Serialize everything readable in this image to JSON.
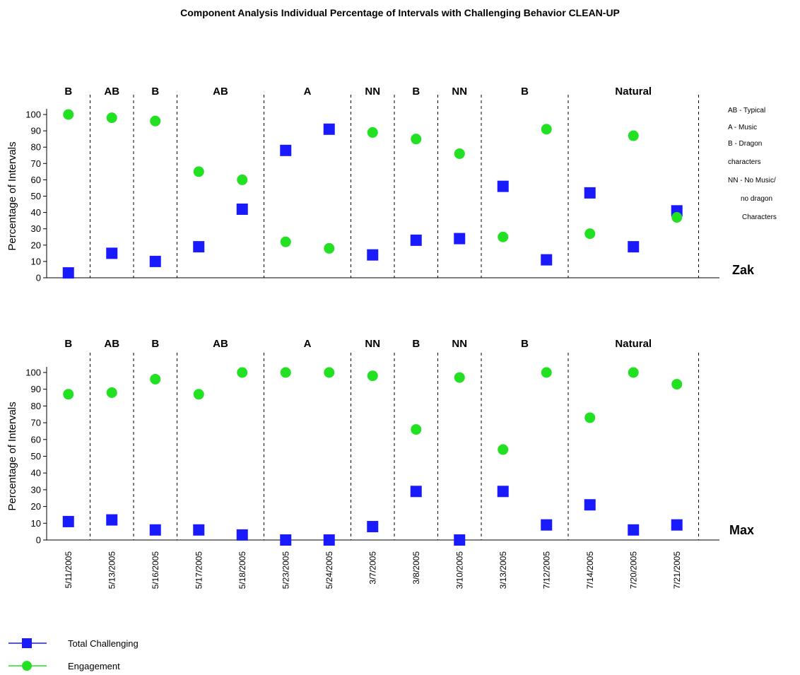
{
  "title": "Component Analysis Individual Percentage of Intervals with Challenging Behavior CLEAN-UP",
  "colors": {
    "challenging": "#1a1aff",
    "engagement": "#22e022",
    "challenging_line": "#1a1aff",
    "engagement_line": "#22e022"
  },
  "phase_key": [
    "AB -  Typical",
    "A   -  Music",
    "B   -  Dragon",
    "characters",
    "NN -  No Music/",
    "no dragon",
    "Characters"
  ],
  "legend": [
    {
      "label": "Total Challenging",
      "marker": "square"
    },
    {
      "label": "Engagement",
      "marker": "circle"
    }
  ],
  "chart_data": [
    {
      "type": "scatter",
      "subject": "Zak",
      "ylabel": "Percentage of Intervals",
      "ylim": [
        0,
        100
      ],
      "yticks": [
        0,
        10,
        20,
        30,
        40,
        50,
        60,
        70,
        80,
        90,
        100
      ],
      "grid": false,
      "phases": [
        {
          "label": "B",
          "start": 0,
          "end": 1
        },
        {
          "label": "AB",
          "start": 1,
          "end": 2
        },
        {
          "label": "B",
          "start": 2,
          "end": 3
        },
        {
          "label": "AB",
          "start": 3,
          "end": 5
        },
        {
          "label": "A",
          "start": 5,
          "end": 7
        },
        {
          "label": "NN",
          "start": 7,
          "end": 8
        },
        {
          "label": "B",
          "start": 8,
          "end": 9
        },
        {
          "label": "NN",
          "start": 9,
          "end": 10
        },
        {
          "label": "B",
          "start": 10,
          "end": 12
        },
        {
          "label": "Natural",
          "start": 12,
          "end": 15
        }
      ],
      "series": [
        {
          "name": "Total Challenging",
          "marker": "square",
          "values": [
            3,
            15,
            10,
            19,
            42,
            78,
            91,
            14,
            23,
            24,
            56,
            11,
            52,
            19,
            41
          ]
        },
        {
          "name": "Engagement",
          "marker": "circle",
          "values": [
            100,
            98,
            96,
            65,
            60,
            22,
            18,
            89,
            85,
            76,
            25,
            91,
            27,
            87,
            37
          ]
        }
      ]
    },
    {
      "type": "scatter",
      "subject": "Max",
      "ylabel": "Percentage of Intervals",
      "ylim": [
        0,
        100
      ],
      "yticks": [
        0,
        10,
        20,
        30,
        40,
        50,
        60,
        70,
        80,
        90,
        100
      ],
      "grid": false,
      "categories": [
        "5/11/2005",
        "5/13/2005",
        "5/16/2005",
        "5/17/2005",
        "5/18/2005",
        "5/23/2005",
        "5/24/2005",
        "3/7/2005",
        "3/8/2005",
        "3/10/2005",
        "3/13/2005",
        "7/12/2005",
        "7/14/2005",
        "7/20/2005",
        "7/21/2005"
      ],
      "phases": [
        {
          "label": "B",
          "start": 0,
          "end": 1
        },
        {
          "label": "AB",
          "start": 1,
          "end": 2
        },
        {
          "label": "B",
          "start": 2,
          "end": 3
        },
        {
          "label": "AB",
          "start": 3,
          "end": 5
        },
        {
          "label": "A",
          "start": 5,
          "end": 7
        },
        {
          "label": "NN",
          "start": 7,
          "end": 8
        },
        {
          "label": "B",
          "start": 8,
          "end": 9
        },
        {
          "label": "NN",
          "start": 9,
          "end": 10
        },
        {
          "label": "B",
          "start": 10,
          "end": 12
        },
        {
          "label": "Natural",
          "start": 12,
          "end": 15
        }
      ],
      "series": [
        {
          "name": "Total Challenging",
          "marker": "square",
          "values": [
            11,
            12,
            6,
            6,
            3,
            0,
            0,
            8,
            29,
            0,
            29,
            9,
            21,
            6,
            9
          ]
        },
        {
          "name": "Engagement",
          "marker": "circle",
          "values": [
            87,
            88,
            96,
            87,
            100,
            100,
            100,
            98,
            66,
            97,
            54,
            100,
            73,
            100,
            93
          ]
        }
      ]
    }
  ]
}
